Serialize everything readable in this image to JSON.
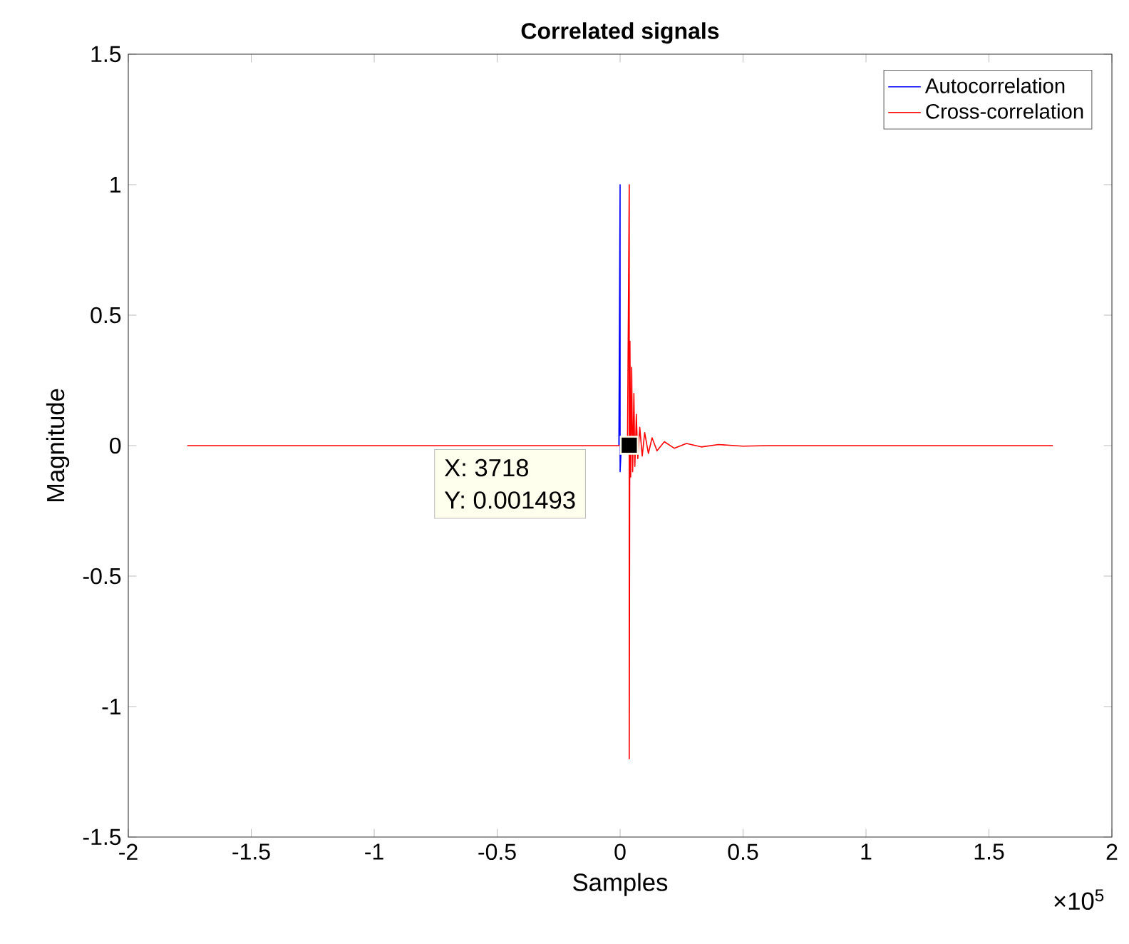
{
  "chart_data": {
    "type": "line",
    "title": "Correlated signals",
    "xlabel": "Samples",
    "ylabel": "Magnitude",
    "xlim": [
      -2,
      2
    ],
    "ylim": [
      -1.5,
      1.5
    ],
    "xticks": [
      -2,
      -1.5,
      -1,
      -0.5,
      0,
      0.5,
      1,
      1.5,
      2
    ],
    "yticks": [
      -1.5,
      -1,
      -0.5,
      0,
      0.5,
      1,
      1.5
    ],
    "series": [
      {
        "name": "Autocorrelation",
        "color": "#0000ff",
        "x": [
          -0.005,
          0,
          0,
          0.005
        ],
        "values": [
          0,
          1,
          -0.1,
          0
        ]
      },
      {
        "name": "Cross-correlation",
        "color": "#ff0000",
        "x": [
          -1.76,
          0.03,
          0.03718,
          0.03718,
          0.04,
          0.043,
          0.047,
          0.051,
          0.056,
          0.06,
          0.066,
          0.072,
          0.08,
          0.09,
          0.1,
          0.115,
          0.13,
          0.15,
          0.18,
          0.22,
          0.27,
          0.33,
          0.4,
          0.5,
          0.6,
          1.76
        ],
        "values": [
          0,
          0,
          1,
          -1.2,
          0.4,
          -0.12,
          0.3,
          -0.1,
          0.2,
          -0.08,
          0.12,
          -0.05,
          0.07,
          -0.04,
          0.05,
          -0.03,
          0.03,
          -0.02,
          0.015,
          -0.01,
          0.008,
          -0.005,
          0.004,
          -0.002,
          0,
          0
        ]
      },
      {
        "type": "scatter",
        "color": "#000000",
        "marker": "square",
        "x": [
          0.03718
        ],
        "values": [
          0.001493
        ]
      }
    ],
    "annotations": [
      "×10$^{5}$",
      "X: 3718",
      "Y: 0.001493"
    ],
    "legend": "top right",
    "grid": false,
    "marker": "none",
    "line_style": "solid"
  }
}
